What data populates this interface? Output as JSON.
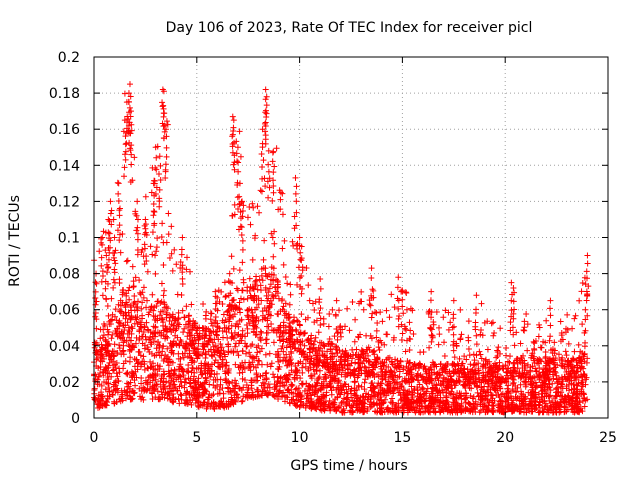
{
  "chart_data": {
    "type": "scatter",
    "title": "Day 106 of 2023, Rate Of TEC Index for receiver picl",
    "xlabel": "GPS time / hours",
    "ylabel": "ROTI / TECUs",
    "xlim": [
      0,
      25
    ],
    "ylim": [
      0,
      0.2
    ],
    "x_ticks": [
      "0",
      "5",
      "10",
      "15",
      "20",
      "25"
    ],
    "y_ticks": [
      "0",
      "0.02",
      "0.04",
      "0.06",
      "0.08",
      "0.1",
      "0.12",
      "0.14",
      "0.16",
      "0.18",
      "0.2"
    ],
    "grid": true,
    "marker": "+",
    "series_color": "#ff0000",
    "envelope": {
      "x": [
        0,
        0.5,
        1,
        1.5,
        2,
        2.5,
        3,
        3.5,
        4,
        4.5,
        5,
        5.5,
        6,
        6.5,
        7,
        7.5,
        8,
        8.5,
        9,
        9.5,
        10,
        10.5,
        11,
        11.5,
        12,
        12.5,
        13,
        13.5,
        14,
        14.5,
        15,
        15.5,
        16,
        16.5,
        17,
        17.5,
        18,
        18.5,
        19,
        19.5,
        20,
        20.5,
        21,
        21.5,
        22,
        22.5,
        23,
        23.5,
        24
      ],
      "upper": [
        0.09,
        0.11,
        0.13,
        0.18,
        0.17,
        0.14,
        0.16,
        0.18,
        0.09,
        0.1,
        0.07,
        0.07,
        0.07,
        0.08,
        0.17,
        0.12,
        0.13,
        0.18,
        0.15,
        0.09,
        0.13,
        0.07,
        0.08,
        0.06,
        0.06,
        0.07,
        0.07,
        0.08,
        0.06,
        0.07,
        0.08,
        0.06,
        0.05,
        0.07,
        0.06,
        0.06,
        0.06,
        0.06,
        0.07,
        0.05,
        0.05,
        0.075,
        0.06,
        0.05,
        0.06,
        0.05,
        0.06,
        0.06,
        0.09
      ],
      "typical": [
        0.03,
        0.035,
        0.04,
        0.05,
        0.05,
        0.045,
        0.045,
        0.045,
        0.04,
        0.04,
        0.035,
        0.035,
        0.035,
        0.04,
        0.05,
        0.05,
        0.055,
        0.06,
        0.05,
        0.04,
        0.035,
        0.03,
        0.028,
        0.028,
        0.025,
        0.025,
        0.025,
        0.025,
        0.022,
        0.022,
        0.022,
        0.02,
        0.02,
        0.02,
        0.02,
        0.02,
        0.02,
        0.02,
        0.02,
        0.02,
        0.02,
        0.022,
        0.022,
        0.022,
        0.022,
        0.022,
        0.022,
        0.022,
        0.025
      ],
      "lower": [
        0.005,
        0.006,
        0.008,
        0.01,
        0.01,
        0.01,
        0.01,
        0.01,
        0.008,
        0.008,
        0.006,
        0.005,
        0.005,
        0.006,
        0.008,
        0.01,
        0.012,
        0.012,
        0.01,
        0.008,
        0.006,
        0.005,
        0.004,
        0.004,
        0.003,
        0.003,
        0.003,
        0.003,
        0.003,
        0.003,
        0.003,
        0.003,
        0.003,
        0.003,
        0.003,
        0.003,
        0.003,
        0.003,
        0.003,
        0.003,
        0.003,
        0.003,
        0.003,
        0.003,
        0.003,
        0.003,
        0.003,
        0.003,
        0.004
      ]
    },
    "peak_points": {
      "x": [
        0.1,
        0.4,
        0.6,
        0.7,
        0.8,
        1.0,
        1.2,
        1.5,
        1.6,
        1.7,
        1.75,
        1.8,
        2.1,
        2.5,
        2.9,
        3.0,
        3.2,
        3.35,
        3.4,
        3.5,
        4.3,
        5.9,
        6.6,
        6.75,
        6.8,
        7.0,
        7.1,
        7.2,
        8.2,
        8.35,
        8.4,
        8.5,
        8.7,
        9.8,
        10.0,
        10.1,
        11.0,
        11.8,
        13.5,
        14.8,
        15.0,
        16.4,
        17.5,
        18.6,
        20.3,
        20.4,
        22.2,
        23.9,
        24.0
      ],
      "y": [
        0.08,
        0.1,
        0.09,
        0.11,
        0.12,
        0.1,
        0.13,
        0.165,
        0.175,
        0.18,
        0.185,
        0.17,
        0.12,
        0.11,
        0.13,
        0.15,
        0.145,
        0.182,
        0.181,
        0.16,
        0.1,
        0.07,
        0.08,
        0.167,
        0.165,
        0.15,
        0.13,
        0.12,
        0.16,
        0.182,
        0.178,
        0.148,
        0.147,
        0.133,
        0.1,
        0.095,
        0.077,
        0.065,
        0.083,
        0.078,
        0.07,
        0.07,
        0.065,
        0.068,
        0.075,
        0.072,
        0.065,
        0.06,
        0.09
      ]
    }
  }
}
